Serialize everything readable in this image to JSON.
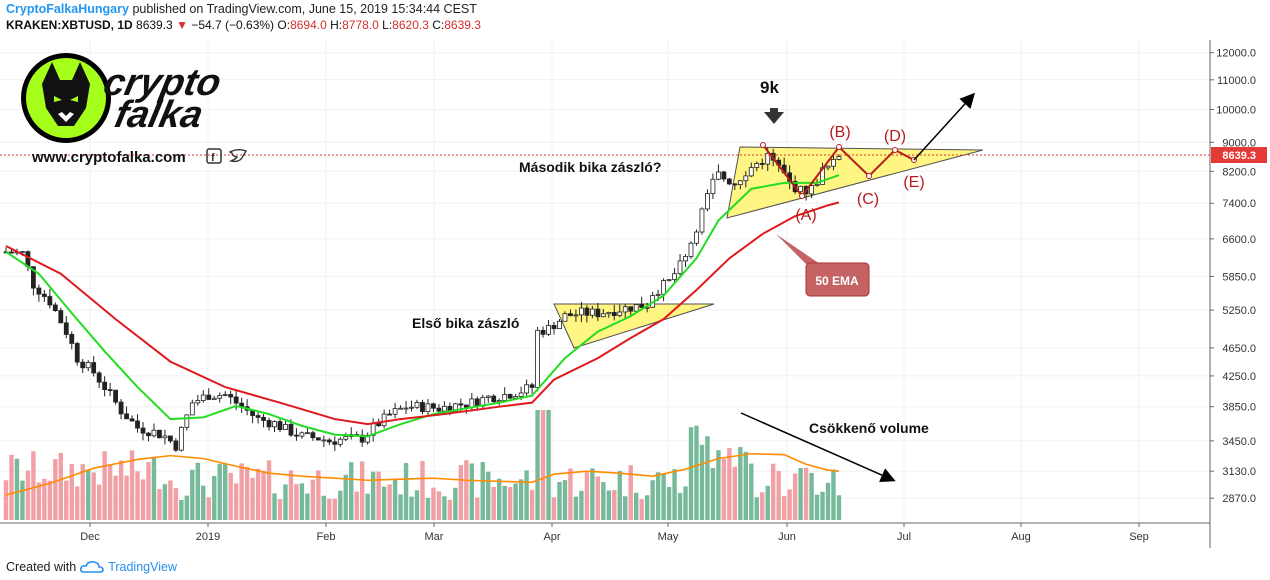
{
  "header": {
    "author": "CryptoFalkaHungary",
    "published": "published on TradingView.com, June 15, 2019 15:34:44 CEST",
    "symbol": "KRAKEN:XBTUSD, 1D",
    "last": "8639.3",
    "change": "−54.7 (−0.63%)",
    "o_label": "O:",
    "o_value": "8694.0",
    "h_label": "H:",
    "h_value": "8778.0",
    "l_label": "L:",
    "l_value": "8620.3",
    "c_label": "C:",
    "c_value": "8639.3"
  },
  "logo": {
    "line1": "crypto",
    "line2": "falka",
    "website": "www.cryptofalka.com"
  },
  "footer": {
    "created_with": "Created with",
    "brand": "TradingView"
  },
  "colors": {
    "up_candle": "#333333",
    "ema_fast": "#22dd22",
    "ema_50": "#e0191e",
    "volume_up": "#5fae8a",
    "volume_down": "#ef8f95",
    "volume_ma": "#ff8c00",
    "triangle_fill": "#fff46e",
    "wave_line": "#b71c1c",
    "price_label_bg": "#e53935"
  },
  "chart_data": {
    "type": "candlestick",
    "scale": "log",
    "ylim": [
      2650,
      12500
    ],
    "y_ticks": [
      "12000.0",
      "11000.0",
      "10000.0",
      "9000.0",
      "8200.0",
      "7400.0",
      "6600.0",
      "5850.0",
      "5250.0",
      "4650.0",
      "4250.0",
      "3850.0",
      "3450.0",
      "3130.0",
      "2870.0"
    ],
    "x_ticks": [
      "Dec",
      "2019",
      "Feb",
      "Mar",
      "Apr",
      "May",
      "Jun",
      "Jul",
      "Aug",
      "Sep"
    ],
    "last_price_label": "8639.3",
    "annotations": {
      "label_9k": "9k",
      "masodik": "Második bika zászló?",
      "elso": "Első bika zászló",
      "volume_note": "Csökkenő volume",
      "ema_label": "50 EMA",
      "wave_A": "(A)",
      "wave_B": "(B)",
      "wave_C": "(C)",
      "wave_D": "(D)",
      "wave_E": "(E)"
    },
    "price_path": [
      [
        0,
        6330
      ],
      [
        3,
        6300
      ],
      [
        5,
        5700
      ],
      [
        8,
        5400
      ],
      [
        11,
        4900
      ],
      [
        13,
        4500
      ],
      [
        16,
        4300
      ],
      [
        19,
        4000
      ],
      [
        21,
        3800
      ],
      [
        24,
        3600
      ],
      [
        27,
        3550
      ],
      [
        29,
        3500
      ],
      [
        31,
        3400
      ],
      [
        34,
        3900
      ],
      [
        37,
        4000
      ],
      [
        40,
        4000
      ],
      [
        43,
        3850
      ],
      [
        46,
        3700
      ],
      [
        49,
        3650
      ],
      [
        51,
        3580
      ],
      [
        54,
        3500
      ],
      [
        57,
        3480
      ],
      [
        59,
        3450
      ],
      [
        62,
        3470
      ],
      [
        65,
        3480
      ],
      [
        67,
        3600
      ],
      [
        70,
        3750
      ],
      [
        73,
        3850
      ],
      [
        76,
        3850
      ],
      [
        79,
        3830
      ],
      [
        82,
        3870
      ],
      [
        85,
        3900
      ],
      [
        88,
        3970
      ],
      [
        91,
        4000
      ],
      [
        94,
        4050
      ],
      [
        96,
        4100
      ],
      [
        97,
        4900
      ],
      [
        99,
        4950
      ],
      [
        102,
        5150
      ],
      [
        105,
        5200
      ],
      [
        108,
        5200
      ],
      [
        111,
        5250
      ],
      [
        114,
        5300
      ],
      [
        117,
        5350
      ],
      [
        118,
        5550
      ],
      [
        121,
        5750
      ],
      [
        124,
        6200
      ],
      [
        127,
        7200
      ],
      [
        129,
        7900
      ],
      [
        130,
        8100
      ],
      [
        133,
        7900
      ],
      [
        135,
        8200
      ],
      [
        137,
        8400
      ],
      [
        139,
        8600
      ],
      [
        141,
        8300
      ],
      [
        143,
        7900
      ],
      [
        145,
        7700
      ],
      [
        147,
        7750
      ],
      [
        149,
        8200
      ],
      [
        151,
        8400
      ],
      [
        152,
        8640
      ]
    ],
    "ema_fast": [
      [
        0,
        6330
      ],
      [
        6,
        5900
      ],
      [
        12,
        5200
      ],
      [
        18,
        4600
      ],
      [
        24,
        4100
      ],
      [
        30,
        3700
      ],
      [
        36,
        3720
      ],
      [
        42,
        3860
      ],
      [
        48,
        3760
      ],
      [
        54,
        3620
      ],
      [
        60,
        3520
      ],
      [
        66,
        3500
      ],
      [
        72,
        3640
      ],
      [
        78,
        3760
      ],
      [
        84,
        3830
      ],
      [
        90,
        3900
      ],
      [
        96,
        3990
      ],
      [
        102,
        4500
      ],
      [
        108,
        4900
      ],
      [
        114,
        5150
      ],
      [
        120,
        5500
      ],
      [
        126,
        6200
      ],
      [
        130,
        7000
      ],
      [
        136,
        7750
      ],
      [
        142,
        7900
      ],
      [
        148,
        7900
      ],
      [
        152,
        8100
      ]
    ],
    "ema_50": [
      [
        0,
        6450
      ],
      [
        10,
        5900
      ],
      [
        20,
        5100
      ],
      [
        30,
        4450
      ],
      [
        40,
        4100
      ],
      [
        50,
        3900
      ],
      [
        60,
        3700
      ],
      [
        66,
        3640
      ],
      [
        72,
        3700
      ],
      [
        80,
        3760
      ],
      [
        90,
        3850
      ],
      [
        96,
        3900
      ],
      [
        100,
        4200
      ],
      [
        108,
        4500
      ],
      [
        114,
        4800
      ],
      [
        120,
        5100
      ],
      [
        126,
        5600
      ],
      [
        132,
        6200
      ],
      [
        138,
        6700
      ],
      [
        144,
        7100
      ],
      [
        150,
        7350
      ],
      [
        152,
        7420
      ]
    ],
    "volume_ma": [
      [
        0,
        2900
      ],
      [
        8,
        3010
      ],
      [
        16,
        3160
      ],
      [
        24,
        3250
      ],
      [
        30,
        3290
      ],
      [
        36,
        3260
      ],
      [
        42,
        3180
      ],
      [
        48,
        3110
      ],
      [
        54,
        3080
      ],
      [
        60,
        3060
      ],
      [
        66,
        3040
      ],
      [
        72,
        3050
      ],
      [
        78,
        3060
      ],
      [
        84,
        3040
      ],
      [
        90,
        3030
      ],
      [
        96,
        3020
      ],
      [
        100,
        3100
      ],
      [
        106,
        3130
      ],
      [
        112,
        3110
      ],
      [
        118,
        3080
      ],
      [
        124,
        3150
      ],
      [
        130,
        3260
      ],
      [
        136,
        3310
      ],
      [
        142,
        3300
      ],
      [
        146,
        3200
      ],
      [
        150,
        3140
      ],
      [
        152,
        3130
      ]
    ]
  }
}
